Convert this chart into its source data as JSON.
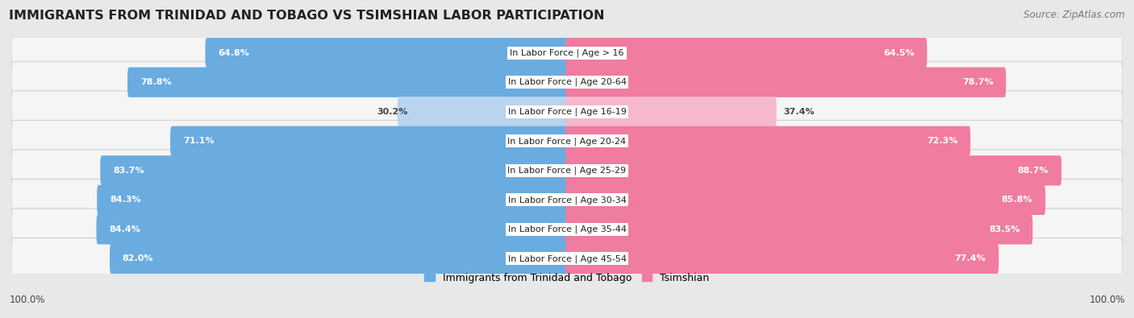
{
  "title": "IMMIGRANTS FROM TRINIDAD AND TOBAGO VS TSIMSHIAN LABOR PARTICIPATION",
  "source": "Source: ZipAtlas.com",
  "categories": [
    "In Labor Force | Age > 16",
    "In Labor Force | Age 20-64",
    "In Labor Force | Age 16-19",
    "In Labor Force | Age 20-24",
    "In Labor Force | Age 25-29",
    "In Labor Force | Age 30-34",
    "In Labor Force | Age 35-44",
    "In Labor Force | Age 45-54"
  ],
  "left_values": [
    64.8,
    78.8,
    30.2,
    71.1,
    83.7,
    84.3,
    84.4,
    82.0
  ],
  "right_values": [
    64.5,
    78.7,
    37.4,
    72.3,
    88.7,
    85.8,
    83.5,
    77.4
  ],
  "left_color": "#6aace0",
  "right_color": "#f07ca0",
  "left_color_light": "#b8d4ee",
  "right_color_light": "#f5b8cc",
  "left_label": "Immigrants from Trinidad and Tobago",
  "right_label": "Tsimshian",
  "max_value": 100.0,
  "bg_color": "#e8e8e8",
  "row_bg_color": "#f5f5f5",
  "row_border_color": "#d0d0d0",
  "title_fontsize": 11.5,
  "label_fontsize": 8.0,
  "value_fontsize": 8.0,
  "footer_fontsize": 8.5,
  "source_fontsize": 8.5
}
